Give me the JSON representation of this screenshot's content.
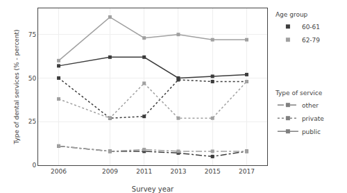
{
  "chart_data": {
    "type": "line",
    "xlabel": "Survey year",
    "ylabel": "Type of dental services (% - percent)",
    "x": [
      2006,
      2009,
      2011,
      2013,
      2015,
      2017
    ],
    "xlim": [
      2004.8,
      2018.2
    ],
    "xticks": [
      2006,
      2009,
      2011,
      2013,
      2015,
      2017
    ],
    "ylim": [
      0,
      90
    ],
    "yticks": [
      0,
      25,
      50,
      75
    ],
    "grid": true,
    "marker": "square",
    "series": [
      {
        "age_group": "60-61",
        "service": "public",
        "color": "#3c3c3c",
        "line_style": "solid",
        "values": [
          57,
          62,
          62,
          50,
          51,
          52
        ]
      },
      {
        "age_group": "62-79",
        "service": "public",
        "color": "#a0a0a0",
        "line_style": "solid",
        "values": [
          60,
          85,
          73,
          75,
          72,
          72
        ]
      },
      {
        "age_group": "60-61",
        "service": "private",
        "color": "#3c3c3c",
        "line_style": "dotted",
        "values": [
          50,
          27,
          28,
          49,
          48,
          48
        ]
      },
      {
        "age_group": "62-79",
        "service": "private",
        "color": "#a0a0a0",
        "line_style": "dotted",
        "values": [
          38,
          27,
          47,
          27,
          27,
          48
        ]
      },
      {
        "age_group": "60-61",
        "service": "other",
        "color": "#3c3c3c",
        "line_style": "dashdot",
        "values": [
          11,
          8,
          8,
          7,
          5,
          8
        ]
      },
      {
        "age_group": "62-79",
        "service": "other",
        "color": "#a0a0a0",
        "line_style": "dashdot",
        "values": [
          11,
          8,
          9,
          8,
          8,
          8
        ]
      }
    ],
    "legends": [
      {
        "title": "Age group",
        "entries": [
          {
            "name": "60-61",
            "color": "#3c3c3c"
          },
          {
            "name": "62-79",
            "color": "#a0a0a0"
          }
        ]
      },
      {
        "title": "Type of service",
        "entries": [
          {
            "name": "other",
            "color": "#808080",
            "line_style": "dashdot"
          },
          {
            "name": "private",
            "color": "#808080",
            "line_style": "dotted"
          },
          {
            "name": "public",
            "color": "#808080",
            "line_style": "solid"
          }
        ]
      }
    ]
  }
}
